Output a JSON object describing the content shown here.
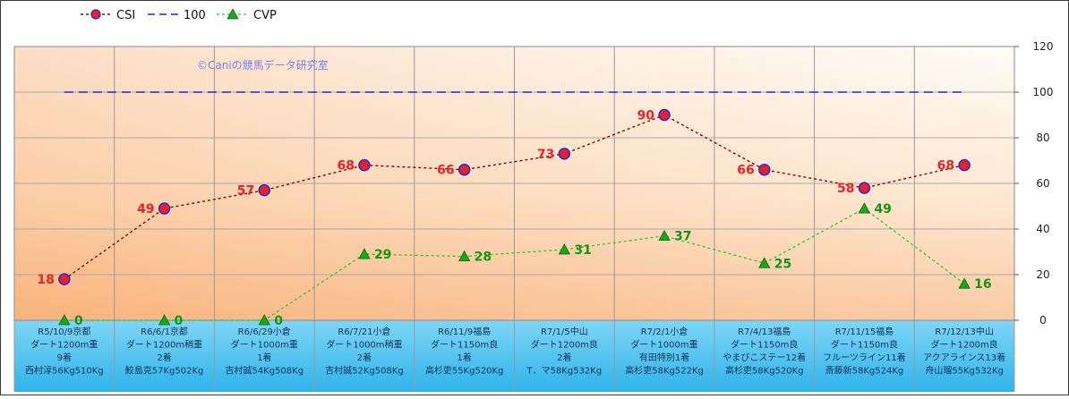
{
  "legend": {
    "items": [
      {
        "name": "CSI",
        "color": "#8b0000",
        "marker": "circle",
        "marker_color": "#e8202a",
        "marker_edge": "#2a2ad0",
        "line": "dashed"
      },
      {
        "name": "100",
        "color": "#1f24d6",
        "marker": "none",
        "line": "dashed"
      },
      {
        "name": "CVP",
        "color": "#22cc22",
        "marker": "triangle",
        "marker_color": "#1aa81a",
        "line": "dashed"
      }
    ]
  },
  "watermark": "©Caniの競馬データ研究室",
  "chart_data": {
    "type": "line",
    "ylim": [
      0,
      120
    ],
    "yticks": [
      0,
      20,
      40,
      60,
      80,
      100,
      120
    ],
    "grid": true,
    "legend_position": "top-left",
    "categories": [
      [
        "R5/10/9京都",
        "ダート1200m重",
        "9着",
        "西村淳56Kg510Kg"
      ],
      [
        "R6/6/1京都",
        "ダート1200m稍重",
        "2着",
        "鮫島克57Kg502Kg"
      ],
      [
        "R6/6/29小倉",
        "ダート1000m重",
        "1着",
        "吉村誠54Kg508Kg"
      ],
      [
        "R6/7/21小倉",
        "ダート1000m稍重",
        "2着",
        "吉村誠52Kg508Kg"
      ],
      [
        "R6/11/9福島",
        "ダート1150m良",
        "1着",
        "高杉吏55Kg520Kg"
      ],
      [
        "R7/1/5中山",
        "ダート1200m良",
        "2着",
        "T．マ58Kg532Kg"
      ],
      [
        "R7/2/1小倉",
        "ダート1000m重",
        "有田特別1着",
        "高杉吏58Kg522Kg"
      ],
      [
        "R7/4/13福島",
        "ダート1150m良",
        "やまびこステー12着",
        "高杉吏58Kg520Kg"
      ],
      [
        "R7/11/15福島",
        "ダート1150m良",
        "フルーツライン11着",
        "斎藤新58Kg524Kg"
      ],
      [
        "R7/12/13中山",
        "ダート1200m良",
        "アクアラインス13着",
        "舟山瑠55Kg532Kg"
      ]
    ],
    "series": [
      {
        "name": "CSI",
        "values": [
          18,
          49,
          57,
          68,
          66,
          73,
          90,
          66,
          58,
          68
        ],
        "color": "#8b0000",
        "label_color": "#e8202a"
      },
      {
        "name": "100",
        "values": [
          100,
          100,
          100,
          100,
          100,
          100,
          100,
          100,
          100,
          100
        ],
        "color": "#1f24d6"
      },
      {
        "name": "CVP",
        "values": [
          0,
          0,
          0,
          29,
          28,
          31,
          37,
          25,
          49,
          16
        ],
        "color": "#22cc22",
        "label_color": "#149414"
      }
    ]
  }
}
